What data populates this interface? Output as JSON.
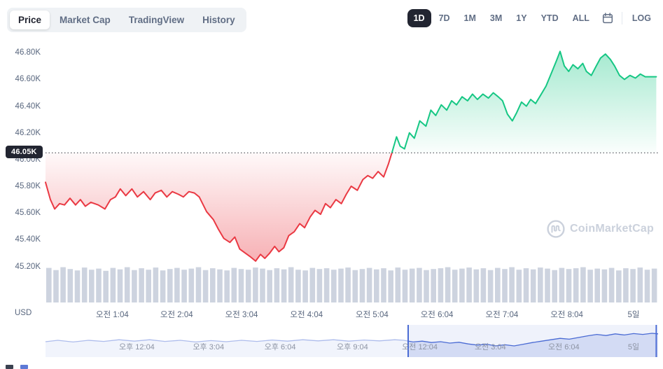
{
  "header": {
    "view_tabs": [
      {
        "label": "Price",
        "active": true
      },
      {
        "label": "Market Cap",
        "active": false
      },
      {
        "label": "TradingView",
        "active": false
      },
      {
        "label": "History",
        "active": false
      }
    ],
    "range_buttons": [
      {
        "label": "1D",
        "active": true
      },
      {
        "label": "7D",
        "active": false
      },
      {
        "label": "1M",
        "active": false
      },
      {
        "label": "3M",
        "active": false
      },
      {
        "label": "1Y",
        "active": false
      },
      {
        "label": "YTD",
        "active": false
      },
      {
        "label": "ALL",
        "active": false
      }
    ],
    "log_label": "LOG"
  },
  "axis": {
    "usd_label": "USD",
    "current_price_label": "46.05K"
  },
  "watermark_label": "CoinMarketCap",
  "colors": {
    "up": "#16C784",
    "down": "#EA3943",
    "badge_bg": "#222531",
    "volume_bar": "#CDD3DF",
    "axis_text": "#58667E",
    "muted_text": "#616E85",
    "watermark": "#CBD1DC",
    "navigator_line": "#4A6BD4",
    "baseline_dash": "#30343D"
  },
  "chart_data": {
    "type": "line",
    "currency": "USD",
    "baseline_value": 46.05,
    "ylim": [
      44.93,
      46.88
    ],
    "y_ticks": [
      {
        "label": "46.80K",
        "value": 46.8
      },
      {
        "label": "46.60K",
        "value": 46.6
      },
      {
        "label": "46.40K",
        "value": 46.4
      },
      {
        "label": "46.20K",
        "value": 46.2
      },
      {
        "label": "46.00K",
        "value": 46.0
      },
      {
        "label": "45.80K",
        "value": 45.8
      },
      {
        "label": "45.60K",
        "value": 45.6
      },
      {
        "label": "45.40K",
        "value": 45.4
      },
      {
        "label": "45.20K",
        "value": 45.2
      }
    ],
    "x_ticks": [
      {
        "label": "오전 1:04",
        "t": 0.109
      },
      {
        "label": "오전 2:04",
        "t": 0.214
      },
      {
        "label": "오전 3:04",
        "t": 0.32
      },
      {
        "label": "오전 4:04",
        "t": 0.426
      },
      {
        "label": "오전 5:04",
        "t": 0.533
      },
      {
        "label": "오전 6:04",
        "t": 0.639
      },
      {
        "label": "오전 7:04",
        "t": 0.745
      },
      {
        "label": "오전 8:04",
        "t": 0.851
      },
      {
        "label": "5일",
        "t": 0.96
      }
    ],
    "price_points": [
      [
        0,
        45.83
      ],
      [
        0.008,
        45.7
      ],
      [
        0.015,
        45.63
      ],
      [
        0.023,
        45.67
      ],
      [
        0.031,
        45.66
      ],
      [
        0.04,
        45.71
      ],
      [
        0.049,
        45.66
      ],
      [
        0.057,
        45.7
      ],
      [
        0.065,
        45.65
      ],
      [
        0.074,
        45.68
      ],
      [
        0.086,
        45.66
      ],
      [
        0.097,
        45.63
      ],
      [
        0.106,
        45.7
      ],
      [
        0.114,
        45.72
      ],
      [
        0.122,
        45.78
      ],
      [
        0.131,
        45.73
      ],
      [
        0.141,
        45.78
      ],
      [
        0.15,
        45.72
      ],
      [
        0.16,
        45.76
      ],
      [
        0.171,
        45.7
      ],
      [
        0.179,
        45.75
      ],
      [
        0.189,
        45.77
      ],
      [
        0.198,
        45.72
      ],
      [
        0.207,
        45.76
      ],
      [
        0.217,
        45.74
      ],
      [
        0.225,
        45.72
      ],
      [
        0.234,
        45.76
      ],
      [
        0.243,
        45.75
      ],
      [
        0.251,
        45.72
      ],
      [
        0.263,
        45.61
      ],
      [
        0.274,
        45.55
      ],
      [
        0.282,
        45.48
      ],
      [
        0.291,
        45.41
      ],
      [
        0.301,
        45.38
      ],
      [
        0.309,
        45.42
      ],
      [
        0.317,
        45.33
      ],
      [
        0.326,
        45.3
      ],
      [
        0.335,
        45.27
      ],
      [
        0.343,
        45.24
      ],
      [
        0.351,
        45.29
      ],
      [
        0.358,
        45.26
      ],
      [
        0.366,
        45.3
      ],
      [
        0.374,
        45.35
      ],
      [
        0.381,
        45.31
      ],
      [
        0.389,
        45.34
      ],
      [
        0.397,
        45.43
      ],
      [
        0.406,
        45.46
      ],
      [
        0.415,
        45.52
      ],
      [
        0.423,
        45.49
      ],
      [
        0.432,
        45.57
      ],
      [
        0.44,
        45.62
      ],
      [
        0.449,
        45.59
      ],
      [
        0.457,
        45.67
      ],
      [
        0.465,
        45.64
      ],
      [
        0.474,
        45.7
      ],
      [
        0.483,
        45.67
      ],
      [
        0.491,
        45.74
      ],
      [
        0.499,
        45.8
      ],
      [
        0.509,
        45.77
      ],
      [
        0.518,
        45.85
      ],
      [
        0.526,
        45.88
      ],
      [
        0.534,
        45.86
      ],
      [
        0.543,
        45.91
      ],
      [
        0.552,
        45.87
      ],
      [
        0.56,
        45.97
      ],
      [
        0.566,
        46.06
      ],
      [
        0.573,
        46.17
      ],
      [
        0.579,
        46.1
      ],
      [
        0.586,
        46.08
      ],
      [
        0.594,
        46.2
      ],
      [
        0.602,
        46.16
      ],
      [
        0.611,
        46.29
      ],
      [
        0.621,
        46.25
      ],
      [
        0.629,
        46.37
      ],
      [
        0.637,
        46.33
      ],
      [
        0.646,
        46.41
      ],
      [
        0.655,
        46.37
      ],
      [
        0.663,
        46.44
      ],
      [
        0.671,
        46.41
      ],
      [
        0.68,
        46.47
      ],
      [
        0.689,
        46.44
      ],
      [
        0.697,
        46.49
      ],
      [
        0.705,
        46.45
      ],
      [
        0.714,
        46.49
      ],
      [
        0.723,
        46.46
      ],
      [
        0.731,
        46.5
      ],
      [
        0.739,
        46.47
      ],
      [
        0.746,
        46.44
      ],
      [
        0.754,
        46.34
      ],
      [
        0.762,
        46.29
      ],
      [
        0.769,
        46.35
      ],
      [
        0.777,
        46.43
      ],
      [
        0.785,
        46.4
      ],
      [
        0.792,
        46.45
      ],
      [
        0.8,
        46.42
      ],
      [
        0.808,
        46.48
      ],
      [
        0.817,
        46.55
      ],
      [
        0.826,
        46.65
      ],
      [
        0.834,
        46.74
      ],
      [
        0.84,
        46.81
      ],
      [
        0.847,
        46.7
      ],
      [
        0.854,
        46.66
      ],
      [
        0.861,
        46.71
      ],
      [
        0.869,
        46.68
      ],
      [
        0.877,
        46.72
      ],
      [
        0.883,
        46.66
      ],
      [
        0.891,
        46.63
      ],
      [
        0.899,
        46.7
      ],
      [
        0.906,
        46.76
      ],
      [
        0.914,
        46.79
      ],
      [
        0.922,
        46.75
      ],
      [
        0.929,
        46.7
      ],
      [
        0.937,
        46.63
      ],
      [
        0.945,
        46.6
      ],
      [
        0.954,
        46.63
      ],
      [
        0.963,
        46.61
      ],
      [
        0.971,
        46.64
      ],
      [
        0.979,
        46.62
      ],
      [
        0.989,
        46.62
      ],
      [
        0.997,
        46.62
      ]
    ],
    "volume": [
      0.95,
      0.89,
      0.97,
      0.92,
      0.88,
      0.96,
      0.9,
      0.93,
      0.87,
      0.95,
      0.91,
      0.97,
      0.89,
      0.94,
      0.9,
      0.96,
      0.88,
      0.92,
      0.95,
      0.9,
      0.93,
      0.97,
      0.89,
      0.94,
      0.91,
      0.88,
      0.95,
      0.92,
      0.9,
      0.96,
      0.93,
      0.89,
      0.94,
      0.91,
      0.97,
      0.9,
      0.88,
      0.95,
      0.92,
      0.94,
      0.9,
      0.93,
      0.96,
      0.89,
      0.92,
      0.95,
      0.91,
      0.94,
      0.88,
      0.96,
      0.9,
      0.93,
      0.95,
      0.89,
      0.92,
      0.94,
      0.97,
      0.9,
      0.93,
      0.96,
      0.91,
      0.94,
      0.89,
      0.95,
      0.92,
      0.97,
      0.9,
      0.94,
      0.91,
      0.96,
      0.93,
      0.89,
      0.95,
      0.92,
      0.94,
      0.97,
      0.9,
      0.93,
      0.91,
      0.95,
      0.88,
      0.94,
      0.92,
      0.96,
      0.9,
      0.93
    ],
    "navigator": {
      "selection": [
        0.592,
        0.997
      ],
      "labels": [
        {
          "label": "오후 12:04",
          "t": 0.149
        },
        {
          "label": "오후 3:04",
          "t": 0.266
        },
        {
          "label": "오후 6:04",
          "t": 0.383
        },
        {
          "label": "오후 9:04",
          "t": 0.501
        },
        {
          "label": "오전 12:04",
          "t": 0.611
        },
        {
          "label": "오전 3:04",
          "t": 0.726
        },
        {
          "label": "오전 6:04",
          "t": 0.846
        },
        {
          "label": "5일",
          "t": 0.96
        }
      ],
      "points": [
        [
          0,
          0.45
        ],
        [
          0.02,
          0.5
        ],
        [
          0.045,
          0.44
        ],
        [
          0.07,
          0.5
        ],
        [
          0.095,
          0.46
        ],
        [
          0.12,
          0.52
        ],
        [
          0.145,
          0.47
        ],
        [
          0.17,
          0.52
        ],
        [
          0.195,
          0.46
        ],
        [
          0.22,
          0.5
        ],
        [
          0.245,
          0.44
        ],
        [
          0.27,
          0.49
        ],
        [
          0.295,
          0.45
        ],
        [
          0.32,
          0.5
        ],
        [
          0.345,
          0.46
        ],
        [
          0.37,
          0.51
        ],
        [
          0.395,
          0.47
        ],
        [
          0.42,
          0.52
        ],
        [
          0.445,
          0.48
        ],
        [
          0.47,
          0.52
        ],
        [
          0.495,
          0.47
        ],
        [
          0.52,
          0.51
        ],
        [
          0.545,
          0.48
        ],
        [
          0.57,
          0.52
        ],
        [
          0.585,
          0.5
        ],
        [
          0.6,
          0.44
        ],
        [
          0.615,
          0.47
        ],
        [
          0.63,
          0.42
        ],
        [
          0.645,
          0.45
        ],
        [
          0.66,
          0.4
        ],
        [
          0.675,
          0.43
        ],
        [
          0.69,
          0.37
        ],
        [
          0.705,
          0.33
        ],
        [
          0.72,
          0.36
        ],
        [
          0.735,
          0.3
        ],
        [
          0.75,
          0.34
        ],
        [
          0.765,
          0.3
        ],
        [
          0.78,
          0.36
        ],
        [
          0.795,
          0.42
        ],
        [
          0.81,
          0.47
        ],
        [
          0.825,
          0.52
        ],
        [
          0.84,
          0.57
        ],
        [
          0.855,
          0.54
        ],
        [
          0.87,
          0.6
        ],
        [
          0.885,
          0.66
        ],
        [
          0.9,
          0.71
        ],
        [
          0.915,
          0.67
        ],
        [
          0.93,
          0.73
        ],
        [
          0.945,
          0.69
        ],
        [
          0.96,
          0.74
        ],
        [
          0.975,
          0.71
        ],
        [
          0.99,
          0.75
        ],
        [
          1,
          0.73
        ]
      ]
    }
  }
}
